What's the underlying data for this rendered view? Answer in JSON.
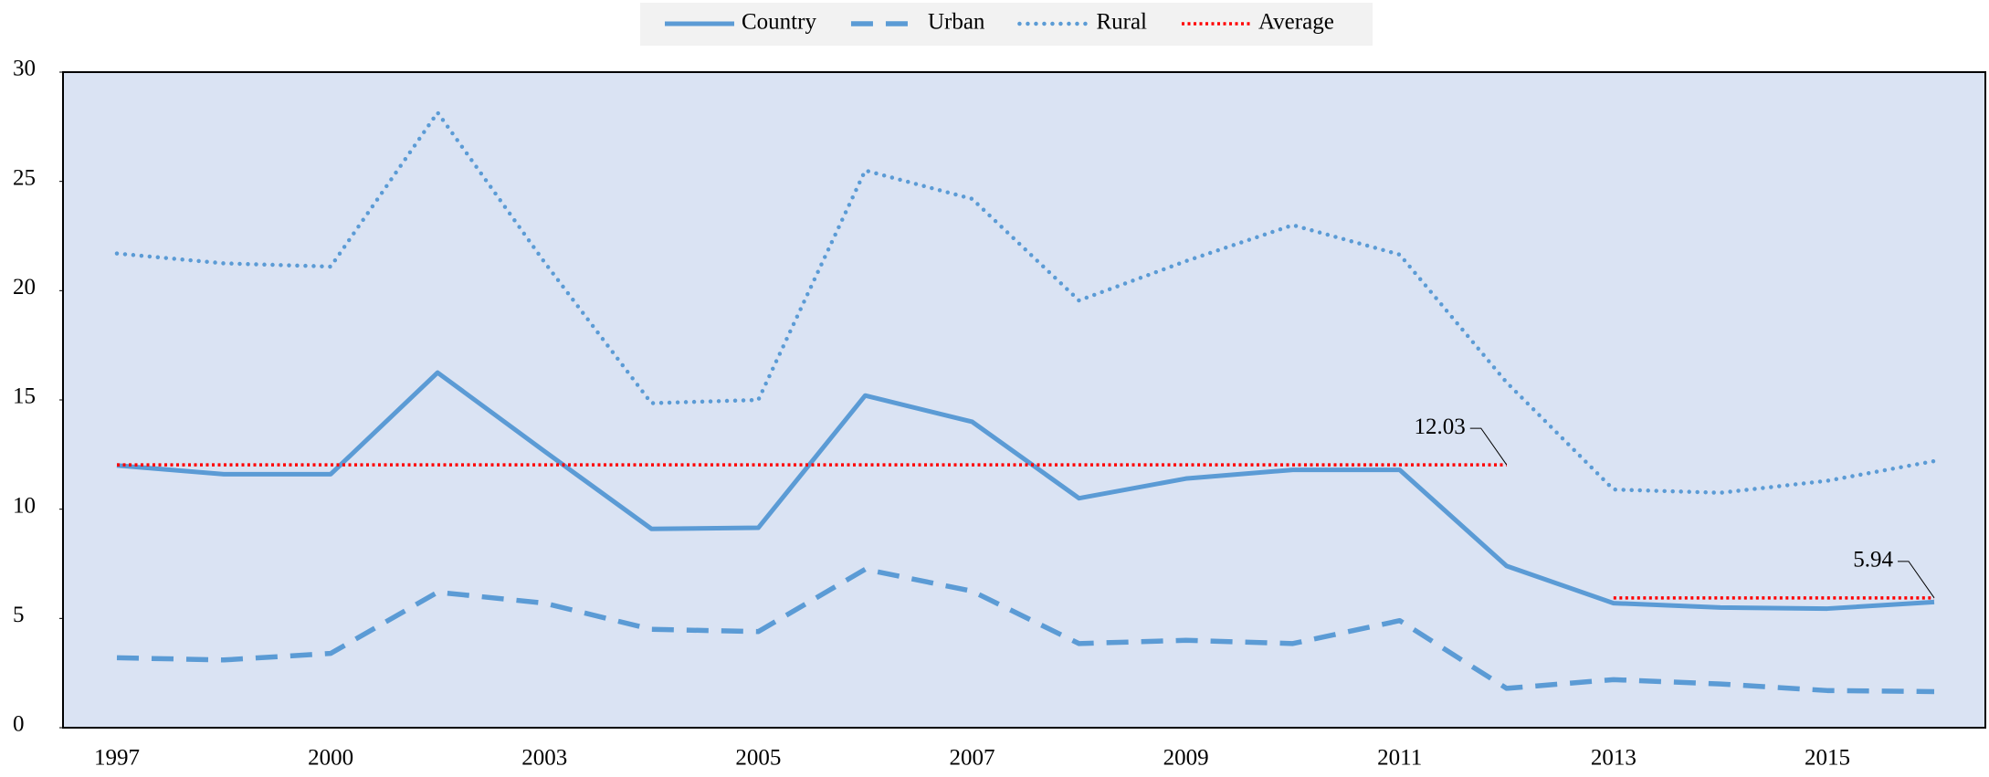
{
  "chart_data": {
    "type": "line",
    "categories": [
      "1997",
      null,
      "2000",
      null,
      "2003",
      null,
      "2005",
      null,
      "2007",
      null,
      "2009",
      null,
      "2011",
      null,
      "2013",
      null,
      "2015",
      null
    ],
    "series": [
      {
        "name": "Country",
        "color": "#5b9bd5",
        "style": "solid",
        "values": [
          12.0,
          11.6,
          11.6,
          16.25,
          12.65,
          9.1,
          9.15,
          15.2,
          14.0,
          10.5,
          11.4,
          11.8,
          11.8,
          7.4,
          5.7,
          5.5,
          5.45,
          5.75
        ]
      },
      {
        "name": "Urban",
        "color": "#5b9bd5",
        "style": "dashed",
        "values": [
          3.2,
          3.1,
          3.4,
          6.2,
          5.7,
          4.5,
          4.4,
          7.25,
          6.25,
          3.85,
          4.0,
          3.85,
          4.9,
          1.8,
          2.2,
          2.0,
          1.7,
          1.65
        ]
      },
      {
        "name": "Rural",
        "color": "#5b9bd5",
        "style": "dotted",
        "values": [
          21.7,
          21.25,
          21.1,
          28.15,
          21.3,
          14.85,
          15.0,
          25.5,
          24.2,
          19.55,
          21.35,
          23.0,
          21.65,
          15.8,
          10.9,
          10.75,
          11.3,
          12.2
        ]
      },
      {
        "name": "Average",
        "color": "#ff0000",
        "style": "average",
        "values": [
          12.03,
          12.03,
          12.03,
          12.03,
          12.03,
          12.03,
          12.03,
          12.03,
          12.03,
          12.03,
          12.03,
          12.03,
          12.03,
          12.03,
          5.94,
          5.94,
          5.94,
          5.94
        ],
        "value_labels": [
          null,
          null,
          null,
          null,
          null,
          null,
          null,
          null,
          null,
          null,
          null,
          null,
          null,
          "12.03",
          null,
          null,
          null,
          "5.94"
        ]
      }
    ],
    "ylim": [
      0,
      30
    ],
    "yticks": [
      0,
      5,
      10,
      15,
      20,
      25,
      30
    ],
    "plot_background": "#dae3f3",
    "legend": "top"
  }
}
